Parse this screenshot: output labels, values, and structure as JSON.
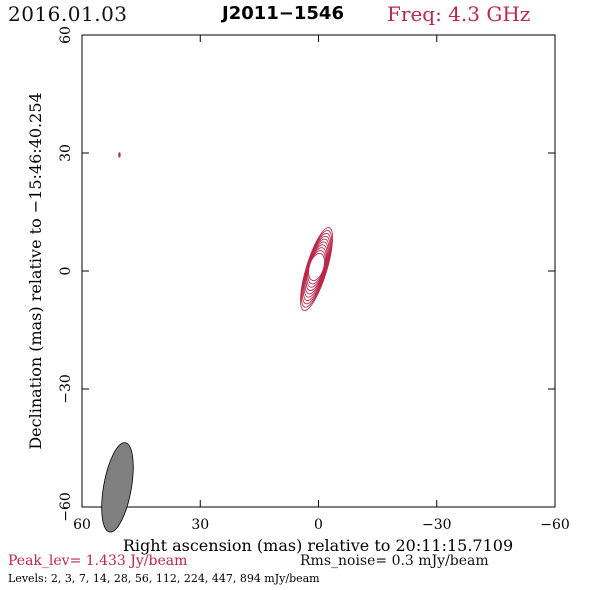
{
  "header": {
    "date": "2016.01.03",
    "source": "J2011−1546",
    "frequency": "Freq: 4.3 GHz"
  },
  "footer": {
    "peak": "Peak_lev=  1.433 Jy/beam",
    "rms": "Rms_noise=  0.3 mJy/beam",
    "levels": "Levels:   2,   3,   7,  14,  28,  56, 112, 224, 447, 894 mJy/beam"
  },
  "colors": {
    "accent": "#b8294a",
    "contour": "#b8294a",
    "beam": "#808080",
    "axis": "#000000"
  },
  "chart_data": {
    "type": "contour",
    "title": "J2011−1546",
    "xlabel": "Right ascension (mas) relative to 20:11:15.7109",
    "ylabel": "Declination (mas) relative to −15:46:40.254",
    "xlim": [
      60,
      -60
    ],
    "ylim": [
      -60,
      60
    ],
    "xticks": [
      60,
      30,
      0,
      -30,
      -60
    ],
    "yticks": [
      -60,
      -30,
      0,
      30,
      60
    ],
    "tick_labels_x": [
      "60",
      "30",
      "0",
      "−30",
      "−60"
    ],
    "tick_labels_y": [
      "−60",
      "−30",
      "0",
      "30",
      "60"
    ],
    "grid": false,
    "peak_jy_per_beam": 1.433,
    "rms_noise_mjy_per_beam": 0.3,
    "contour_levels_mjy_per_beam": [
      2,
      3,
      7,
      14,
      28,
      56,
      112,
      224,
      447,
      894
    ],
    "core": {
      "ra_mas": 0.5,
      "dec_mas": 0.5,
      "pa_deg": 17,
      "outer_major_half_mas": 11,
      "outer_minor_half_mas": 2.6
    },
    "extra_component": {
      "ra_mas": 50.5,
      "dec_mas": 29.5
    },
    "beam": {
      "ra_mas": 51,
      "dec_mas": -55,
      "major_half_mas": 3.2,
      "minor_half_mas": 1.1,
      "pa_deg": 10
    }
  }
}
